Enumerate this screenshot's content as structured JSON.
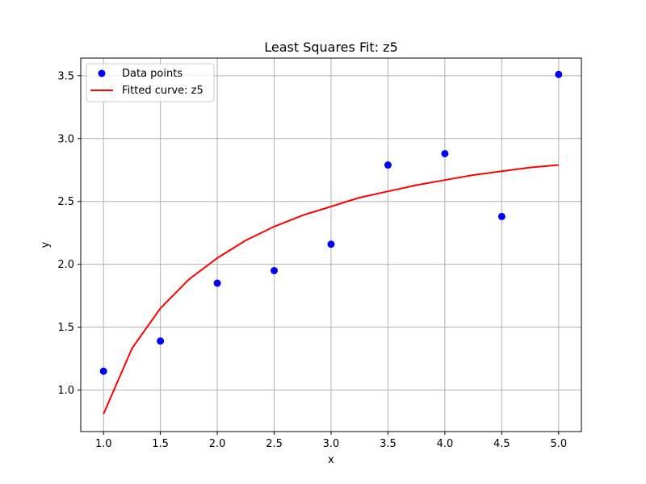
{
  "chart_data": {
    "type": "scatter",
    "title": "Least Squares Fit: z5",
    "xlabel": "x",
    "ylabel": "y",
    "xlim": [
      0.8,
      5.2
    ],
    "ylim": [
      0.67,
      3.64
    ],
    "xticks": [
      1.0,
      1.5,
      2.0,
      2.5,
      3.0,
      3.5,
      4.0,
      4.5,
      5.0
    ],
    "yticks": [
      1.0,
      1.5,
      2.0,
      2.5,
      3.0,
      3.5
    ],
    "xtick_labels": [
      "1.0",
      "1.5",
      "2.0",
      "2.5",
      "3.0",
      "3.5",
      "4.0",
      "4.5",
      "5.0"
    ],
    "ytick_labels": [
      "1.0",
      "1.5",
      "2.0",
      "2.5",
      "3.0",
      "3.5"
    ],
    "grid": true,
    "legend_position": "top-left",
    "series": [
      {
        "name": "Data points",
        "kind": "scatter",
        "color": "#0000ff",
        "x": [
          1.0,
          1.5,
          2.0,
          2.5,
          3.0,
          3.5,
          4.0,
          4.5,
          5.0
        ],
        "y": [
          1.15,
          1.39,
          1.85,
          1.95,
          2.16,
          2.79,
          2.88,
          2.38,
          3.51
        ]
      },
      {
        "name": "Fitted curve: z5",
        "kind": "line",
        "color": "#ff0000",
        "x": [
          1.0,
          1.25,
          1.5,
          1.75,
          2.0,
          2.25,
          2.5,
          2.75,
          3.0,
          3.25,
          3.5,
          3.75,
          4.0,
          4.25,
          4.5,
          4.75,
          5.0
        ],
        "y": [
          0.81,
          1.33,
          1.65,
          1.88,
          2.05,
          2.19,
          2.3,
          2.39,
          2.46,
          2.53,
          2.58,
          2.63,
          2.67,
          2.71,
          2.74,
          2.77,
          2.79
        ]
      }
    ]
  }
}
